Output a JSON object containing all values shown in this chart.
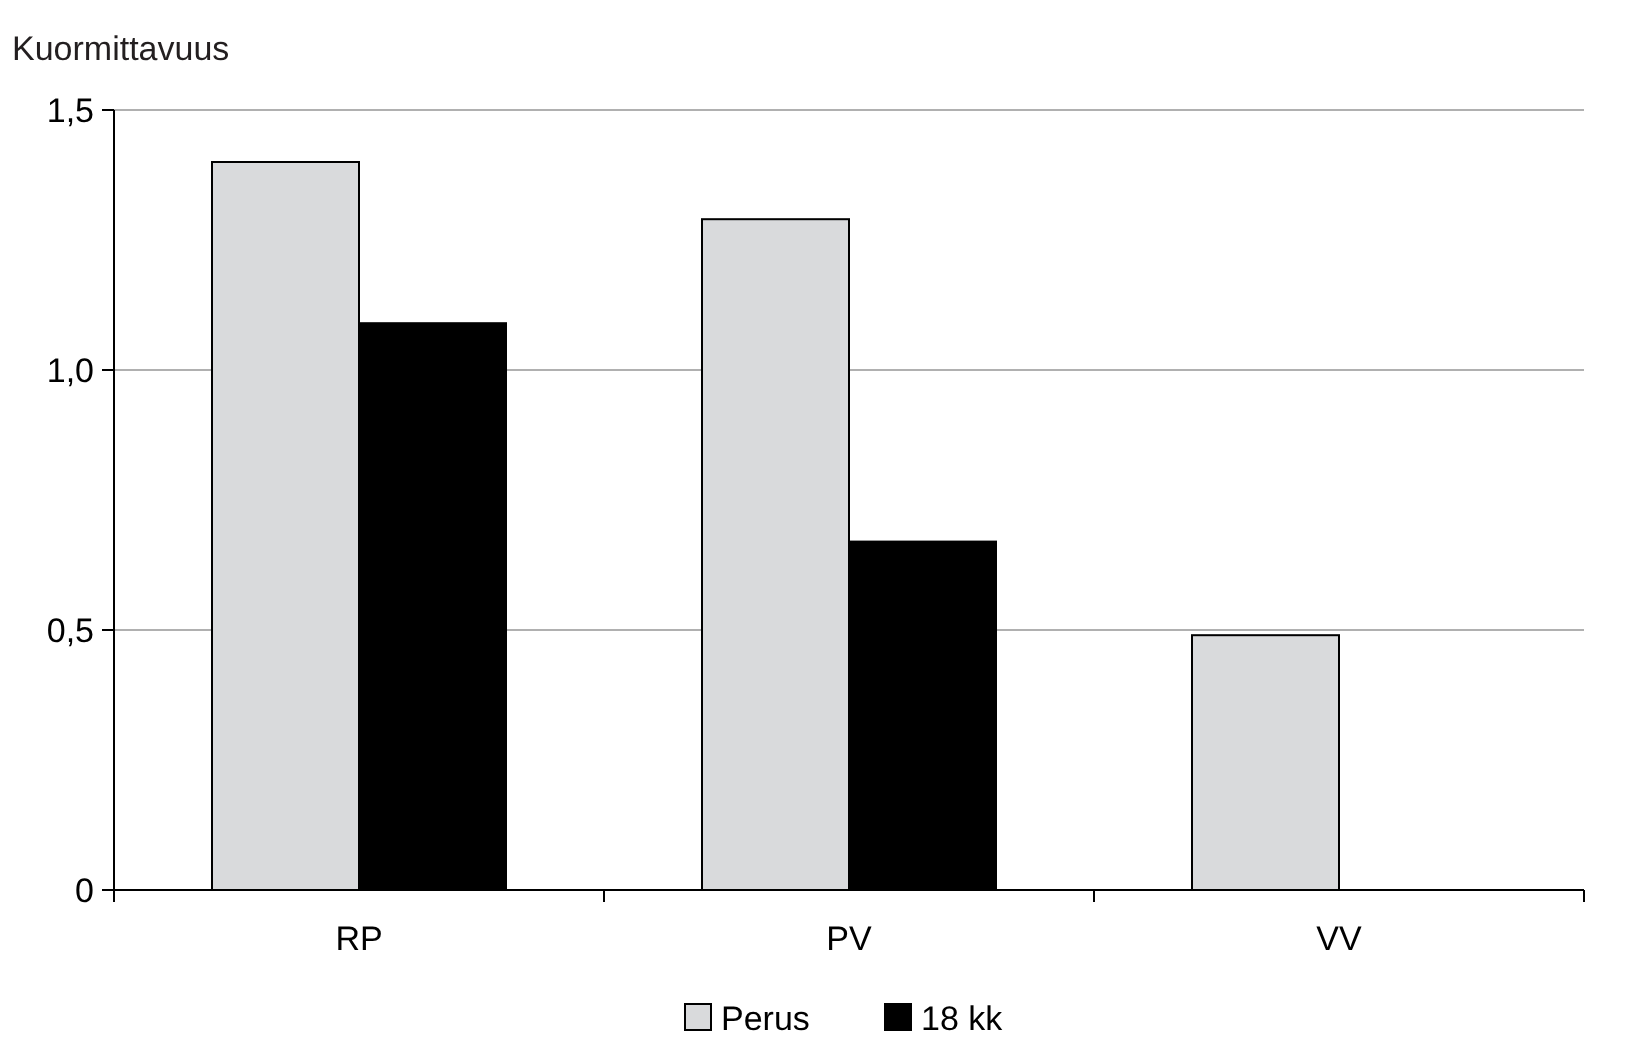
{
  "chart_data": {
    "type": "bar",
    "ylabel": "Kuormittavuus",
    "categories": [
      "RP",
      "PV",
      "VV"
    ],
    "series": [
      {
        "name": "Perus",
        "color": "#d9dadc",
        "values": [
          1.4,
          1.29,
          0.49
        ]
      },
      {
        "name": "18 kk",
        "color": "#000000",
        "values": [
          1.09,
          0.67,
          null
        ]
      }
    ],
    "ylim": [
      0,
      1.5
    ],
    "yticks": [
      {
        "value": 0,
        "label": "0"
      },
      {
        "value": 0.5,
        "label": "0,5"
      },
      {
        "value": 1,
        "label": "1,0"
      },
      {
        "value": 1.5,
        "label": "1,5"
      }
    ],
    "grid": "y",
    "legend": "bottom"
  }
}
